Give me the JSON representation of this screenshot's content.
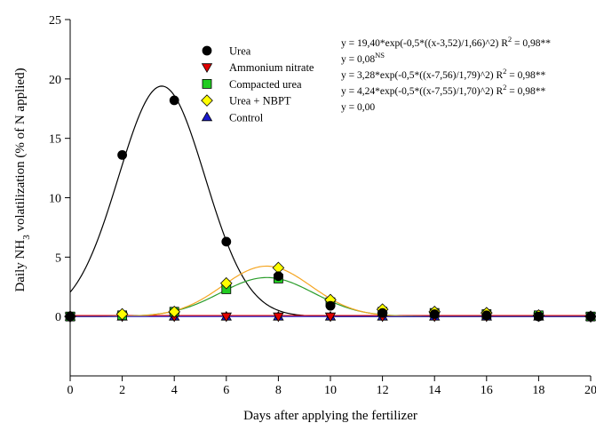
{
  "chart_data": {
    "type": "scatter",
    "title": "",
    "xlabel": "Days after applying the fertilizer",
    "ylabel_parts": {
      "pre": "Daily NH",
      "sub": "3",
      "post": " volatilization (% of N applied)"
    },
    "xlim": [
      0,
      20
    ],
    "ylim": [
      -5,
      25
    ],
    "xticks": [
      0,
      2,
      4,
      6,
      8,
      10,
      12,
      14,
      16,
      18,
      20
    ],
    "yticks": [
      0,
      5,
      10,
      15,
      20,
      25
    ],
    "grid": false,
    "legend_position": "top-center",
    "x": [
      0,
      2,
      4,
      6,
      8,
      10,
      12,
      14,
      16,
      18,
      20
    ],
    "series": [
      {
        "name": "Urea",
        "marker": "circle",
        "color": "#000000",
        "curve_color": "#000000",
        "values": [
          0.0,
          13.6,
          18.2,
          6.3,
          3.4,
          0.9,
          0.3,
          0.2,
          0.1,
          0.0,
          0.0
        ],
        "fit": {
          "a": 19.4,
          "x0": 3.52,
          "b": 1.66
        },
        "fit_offset": 0
      },
      {
        "name": "Ammonium nitrate",
        "marker": "triangle-down",
        "color": "#e00000",
        "curve_color": "#e00000",
        "values": [
          0.0,
          0.0,
          0.0,
          0.0,
          0.0,
          0.0,
          0.0,
          0.0,
          0.0,
          0.0,
          0.0
        ],
        "fit": null,
        "fit_constant": 0.08
      },
      {
        "name": "Compacted urea",
        "marker": "square",
        "color": "#22cc22",
        "curve_color": "#2a9d2a",
        "values": [
          0.0,
          0.1,
          0.4,
          2.3,
          3.2,
          1.2,
          0.4,
          0.3,
          0.2,
          0.1,
          0.0
        ],
        "fit": {
          "a": 3.28,
          "x0": 7.56,
          "b": 1.79
        },
        "fit_offset": 0
      },
      {
        "name": "Urea + NBPT",
        "marker": "diamond",
        "color": "#ffff00",
        "curve_color": "#f5a623",
        "values": [
          0.0,
          0.2,
          0.4,
          2.8,
          4.1,
          1.4,
          0.6,
          0.4,
          0.3,
          0.1,
          0.0
        ],
        "fit": {
          "a": 4.24,
          "x0": 7.55,
          "b": 1.7
        },
        "fit_offset": 0
      },
      {
        "name": "Control",
        "marker": "triangle-up",
        "color": "#1a1acc",
        "curve_color": "#1a1acc",
        "values": [
          0.0,
          0.0,
          0.0,
          0.0,
          0.0,
          0.0,
          0.0,
          0.0,
          0.0,
          0.0,
          0.0
        ],
        "fit": null,
        "fit_constant": 0.0
      }
    ],
    "equations": [
      {
        "text": "y = 19,40*exp(-0,5*((x-3,52)/1,66)^2) R",
        "sup": "2",
        "tail": " = 0,98**"
      },
      {
        "text": "y = 0,08",
        "sup": "NS",
        "tail": ""
      },
      {
        "text": "y = 3,28*exp(-0,5*((x-7,56)/1,79)^2) R",
        "sup": "2",
        "tail": " = 0,98**"
      },
      {
        "text": "y = 4,24*exp(-0,5*((x-7,55)/1,70)^2) R",
        "sup": "2",
        "tail": " = 0,98**"
      },
      {
        "text": "y = 0,00",
        "sup": "",
        "tail": ""
      }
    ]
  }
}
